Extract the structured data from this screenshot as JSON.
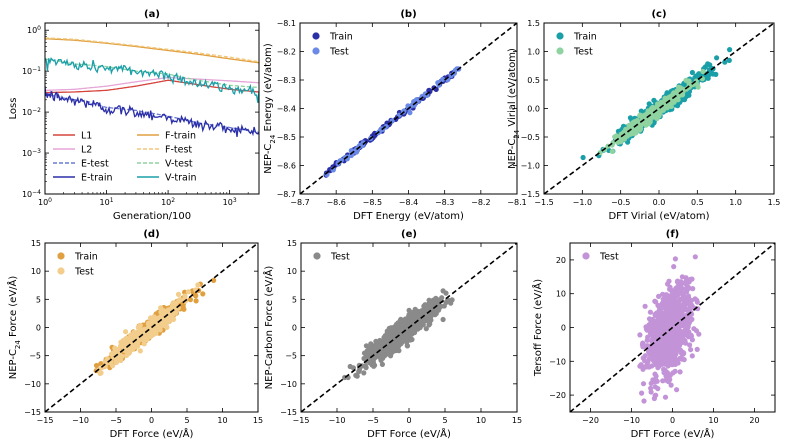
{
  "chart_data": [
    {
      "id": "a",
      "type": "line",
      "title": "(a)",
      "xlabel": "Generation/100",
      "ylabel": "Loss",
      "xscale": "log",
      "yscale": "log",
      "xlim": [
        1,
        3000
      ],
      "ylim": [
        0.0001,
        1.5
      ],
      "xticks": [
        {
          "v": 1,
          "label": "10^0"
        },
        {
          "v": 10,
          "label": "10^1"
        },
        {
          "v": 100,
          "label": "10^2"
        },
        {
          "v": 1000,
          "label": "10^3"
        }
      ],
      "yticks": [
        {
          "v": 0.0001,
          "label": "10^-4"
        },
        {
          "v": 0.001,
          "label": "10^-3"
        },
        {
          "v": 0.01,
          "label": "10^-2"
        },
        {
          "v": 0.1,
          "label": "10^-1"
        },
        {
          "v": 1,
          "label": "10^0"
        }
      ],
      "legend_loc": "lower-left-two-columns",
      "series": [
        {
          "name": "L1",
          "color": "#d6453d",
          "dash": false,
          "x": [
            1,
            3,
            10,
            30,
            100,
            300,
            1000,
            3000
          ],
          "y": [
            0.03,
            0.031,
            0.034,
            0.043,
            0.06,
            0.047,
            0.036,
            0.031
          ]
        },
        {
          "name": "L2",
          "color": "#e5a6d8",
          "dash": false,
          "x": [
            1,
            3,
            10,
            30,
            100,
            300,
            1000,
            3000
          ],
          "y": [
            0.034,
            0.036,
            0.043,
            0.055,
            0.07,
            0.064,
            0.058,
            0.052
          ]
        },
        {
          "name": "E-test",
          "color": "#6b7bd6",
          "dash": true,
          "x": [
            1,
            2,
            5,
            10,
            30,
            100,
            300,
            1000,
            3000
          ],
          "y": [
            0.028,
            0.022,
            0.018,
            0.013,
            0.011,
            0.008,
            0.0055,
            0.0042,
            0.0032
          ]
        },
        {
          "name": "E-train",
          "color": "#2b2fa8",
          "dash": false,
          "noisy": true,
          "x": [
            1,
            2,
            5,
            10,
            30,
            100,
            300,
            1000,
            3000
          ],
          "y": [
            0.028,
            0.021,
            0.017,
            0.012,
            0.01,
            0.0075,
            0.005,
            0.004,
            0.0031
          ]
        },
        {
          "name": "F-train",
          "color": "#e0a040",
          "dash": false,
          "x": [
            1,
            3,
            10,
            30,
            100,
            300,
            1000,
            3000
          ],
          "y": [
            0.62,
            0.57,
            0.48,
            0.4,
            0.32,
            0.26,
            0.2,
            0.16
          ]
        },
        {
          "name": "F-test",
          "color": "#f2c77a",
          "dash": true,
          "x": [
            1,
            3,
            10,
            30,
            100,
            300,
            1000,
            3000
          ],
          "y": [
            0.65,
            0.6,
            0.5,
            0.42,
            0.34,
            0.28,
            0.22,
            0.17
          ]
        },
        {
          "name": "V-test",
          "color": "#8fd3a0",
          "dash": true,
          "x": [
            1,
            3,
            10,
            30,
            100,
            300,
            1000,
            3000
          ],
          "y": [
            0.2,
            0.15,
            0.13,
            0.1,
            0.085,
            0.06,
            0.045,
            0.04
          ]
        },
        {
          "name": "V-train",
          "color": "#1a9fa8",
          "dash": false,
          "noisy": true,
          "x": [
            1,
            3,
            10,
            30,
            100,
            300,
            1000,
            3000
          ],
          "y": [
            0.2,
            0.14,
            0.12,
            0.1,
            0.08,
            0.05,
            0.037,
            0.033
          ]
        }
      ]
    },
    {
      "id": "b",
      "type": "scatter",
      "title": "(b)",
      "xlabel": "DFT Energy (eV/atom)",
      "ylabel": "NEP-C24 Energy (eV/atom)",
      "xlim": [
        -8.7,
        -8.1
      ],
      "ylim": [
        -8.7,
        -8.1
      ],
      "xticks": [
        -8.7,
        -8.6,
        -8.5,
        -8.4,
        -8.3,
        -8.2,
        -8.1
      ],
      "yticks": [
        -8.7,
        -8.6,
        -8.5,
        -8.4,
        -8.3,
        -8.2,
        -8.1
      ],
      "tick_decimals": 1,
      "legend_loc": "upper-left",
      "series": [
        {
          "name": "Train",
          "color": "#2b2fa8",
          "count": 110,
          "range": [
            -8.63,
            -8.27
          ],
          "spread": 0.004,
          "noise": 0.004
        },
        {
          "name": "Test",
          "color": "#6b8ae8",
          "count": 60,
          "range": [
            -8.63,
            -8.26
          ],
          "spread": 0.004,
          "noise": 0.005
        }
      ]
    },
    {
      "id": "c",
      "type": "scatter",
      "title": "(c)",
      "xlabel": "DFT Virial (eV/atom)",
      "ylabel": "NEP-C24 Virial (eV/atom)",
      "xlim": [
        -1.5,
        1.5
      ],
      "ylim": [
        -1.5,
        1.5
      ],
      "xticks": [
        -1.5,
        -1.0,
        -0.5,
        0.0,
        0.5,
        1.0,
        1.5
      ],
      "yticks": [
        -1.5,
        -1.0,
        -0.5,
        0.0,
        0.5,
        1.0,
        1.5
      ],
      "tick_decimals": 1,
      "legend_loc": "upper-left",
      "series": [
        {
          "name": "Train",
          "color": "#1a9fa8",
          "count": 650,
          "range": [
            -1.0,
            1.1
          ],
          "spread": 0.28,
          "noise": 0.07
        },
        {
          "name": "Test",
          "color": "#8fd3a0",
          "count": 300,
          "range": [
            -0.8,
            0.6
          ],
          "spread": 0.25,
          "noise": 0.06
        }
      ]
    },
    {
      "id": "d",
      "type": "scatter",
      "title": "(d)",
      "xlabel": "DFT Force (eV/Å)",
      "ylabel": "NEP-C24 Force (eV/Å)",
      "xlim": [
        -15,
        15
      ],
      "ylim": [
        -15,
        15
      ],
      "xticks": [
        -15,
        -10,
        -5,
        0,
        5,
        10,
        15
      ],
      "yticks": [
        -15,
        -10,
        -5,
        0,
        5,
        10,
        15
      ],
      "tick_decimals": 0,
      "legend_loc": "upper-left",
      "series": [
        {
          "name": "Train",
          "color": "#e0a040",
          "count": 650,
          "range": [
            -10,
            9.5
          ],
          "spread": 2.6,
          "noise": 0.7
        },
        {
          "name": "Test",
          "color": "#f2cd8c",
          "count": 400,
          "range": [
            -9.5,
            8
          ],
          "spread": 2.5,
          "noise": 0.8
        }
      ]
    },
    {
      "id": "e",
      "type": "scatter",
      "title": "(e)",
      "xlabel": "DFT Force (eV/Å)",
      "ylabel": "NEP-Carbon Force (eV/Å)",
      "xlim": [
        -15,
        15
      ],
      "ylim": [
        -15,
        15
      ],
      "xticks": [
        -15,
        -10,
        -5,
        0,
        5,
        10,
        15
      ],
      "yticks": [
        -15,
        -10,
        -5,
        0,
        5,
        10,
        15
      ],
      "tick_decimals": 0,
      "legend_loc": "upper-left",
      "series": [
        {
          "name": "Test",
          "color": "#8a8a8a",
          "count": 900,
          "range": [
            -9,
            7
          ],
          "spread": 2.4,
          "noise": 1.0,
          "slope": 0.95
        }
      ]
    },
    {
      "id": "f",
      "type": "scatter",
      "title": "(f)",
      "xlabel": "DFT Force (eV/Å)",
      "ylabel": "Tersoff Force (eV/Å)",
      "xlim": [
        -25,
        25
      ],
      "ylim": [
        -25,
        25
      ],
      "xticks": [
        -20,
        -10,
        0,
        10,
        20
      ],
      "yticks": [
        -20,
        -10,
        0,
        10,
        20
      ],
      "tick_decimals": 0,
      "legend_loc": "upper-left",
      "series": [
        {
          "name": "Test",
          "color": "#c393d8",
          "count": 900,
          "range": [
            -8,
            6.5
          ],
          "spread": 2.6,
          "noise": 6.0,
          "slope": 1.0
        }
      ]
    }
  ]
}
